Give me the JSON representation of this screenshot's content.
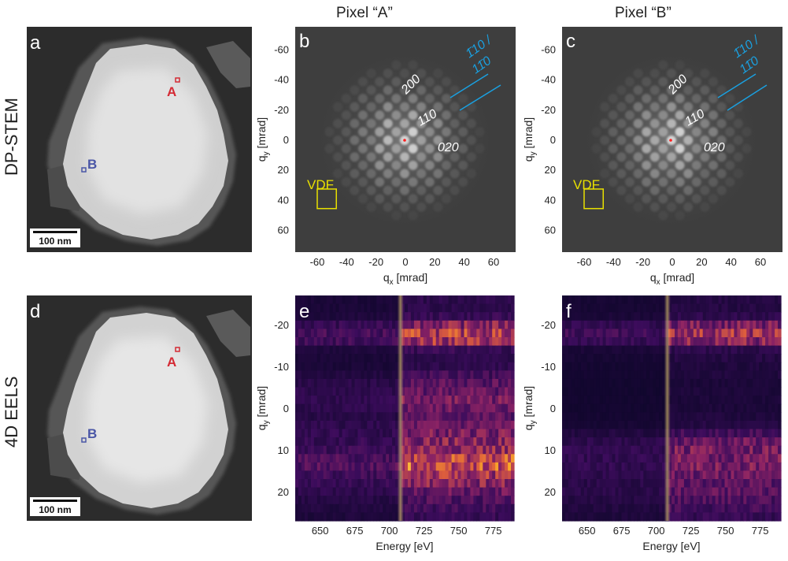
{
  "column_titles": [
    {
      "text": "Pixel “A”",
      "color": "#d42a34"
    },
    {
      "text": "Pixel “B”",
      "color": "#4a56a6"
    }
  ],
  "row_labels": [
    "DP-STEM",
    "4D EELS"
  ],
  "panels": {
    "a": {
      "letter": "a",
      "marker_A": "A",
      "marker_B": "B",
      "scalebar": "100 nm"
    },
    "b": {
      "letter": "b",
      "vdf": "VDF",
      "refl_200": "200",
      "refl_110": "110",
      "refl_020": "020",
      "refl_line1": "1̄10 /",
      "refl_line2": "11̄0"
    },
    "c": {
      "letter": "c",
      "vdf": "VDF",
      "refl_200": "200",
      "refl_110": "110",
      "refl_020": "020",
      "refl_line1": "1̄10 /",
      "refl_line2": "11̄0"
    },
    "d": {
      "letter": "d",
      "marker_A": "A",
      "marker_B": "B",
      "scalebar": "100 nm"
    },
    "e": {
      "letter": "e"
    },
    "f": {
      "letter": "f"
    }
  },
  "colors": {
    "marker_A": "#d42a34",
    "marker_B": "#4a56a6",
    "vdf": "#e8e000",
    "reflection_blue": "#1aa0e0"
  },
  "chart_data": [
    {
      "panel": "b",
      "type": "heatmap",
      "xlabel": "q",
      "xlabel_sub": "x",
      "xlabel_unit": " [mrad]",
      "ylabel": "q",
      "ylabel_sub": "y",
      "ylabel_unit": " [mrad]",
      "xlim": [
        -75,
        75
      ],
      "ylim": [
        -75,
        75
      ],
      "xticks": [
        "-60",
        "-40",
        "-20",
        "0",
        "20",
        "40",
        "60"
      ],
      "xtick_values": [
        -60,
        -40,
        -20,
        0,
        20,
        40,
        60
      ],
      "yticks": [
        "-60",
        "-40",
        "-20",
        "0",
        "20",
        "40",
        "60"
      ],
      "ytick_values": [
        -60,
        -40,
        -20,
        0,
        20,
        40,
        60
      ],
      "vdf_box": {
        "qx": [
          -60,
          -47
        ],
        "qy": [
          33,
          46
        ]
      }
    },
    {
      "panel": "c",
      "type": "heatmap",
      "xlabel": "q",
      "xlabel_sub": "x",
      "xlabel_unit": " [mrad]",
      "ylabel": "q",
      "ylabel_sub": "y",
      "ylabel_unit": " [mrad]",
      "xlim": [
        -75,
        75
      ],
      "ylim": [
        -75,
        75
      ],
      "xticks": [
        "-60",
        "-40",
        "-20",
        "0",
        "20",
        "40",
        "60"
      ],
      "xtick_values": [
        -60,
        -40,
        -20,
        0,
        20,
        40,
        60
      ],
      "yticks": [
        "-60",
        "-40",
        "-20",
        "0",
        "20",
        "40",
        "60"
      ],
      "ytick_values": [
        -60,
        -40,
        -20,
        0,
        20,
        40,
        60
      ],
      "vdf_box": {
        "qx": [
          -60,
          -47
        ],
        "qy": [
          33,
          46
        ]
      }
    },
    {
      "panel": "e",
      "type": "heatmap",
      "xlabel": "Energy [eV]",
      "ylabel": "q",
      "ylabel_sub": "y",
      "ylabel_unit": " [mrad]",
      "xlim": [
        632,
        790
      ],
      "ylim": [
        -27,
        27
      ],
      "xticks": [
        "650",
        "675",
        "700",
        "725",
        "750",
        "775"
      ],
      "xtick_values": [
        650,
        675,
        700,
        725,
        750,
        775
      ],
      "yticks": [
        "-20",
        "-10",
        "0",
        "10",
        "20"
      ],
      "ytick_values": [
        -20,
        -10,
        0,
        10,
        20
      ],
      "edge_energy": 708
    },
    {
      "panel": "f",
      "type": "heatmap",
      "xlabel": "Energy [eV]",
      "ylabel": "q",
      "ylabel_sub": "y",
      "ylabel_unit": " [mrad]",
      "xlim": [
        632,
        790
      ],
      "ylim": [
        -27,
        27
      ],
      "xticks": [
        "650",
        "675",
        "700",
        "725",
        "750",
        "775"
      ],
      "xtick_values": [
        650,
        675,
        700,
        725,
        750,
        775
      ],
      "yticks": [
        "-20",
        "-10",
        "0",
        "10",
        "20"
      ],
      "ytick_values": [
        -20,
        -10,
        0,
        10,
        20
      ],
      "edge_energy": 708
    }
  ]
}
